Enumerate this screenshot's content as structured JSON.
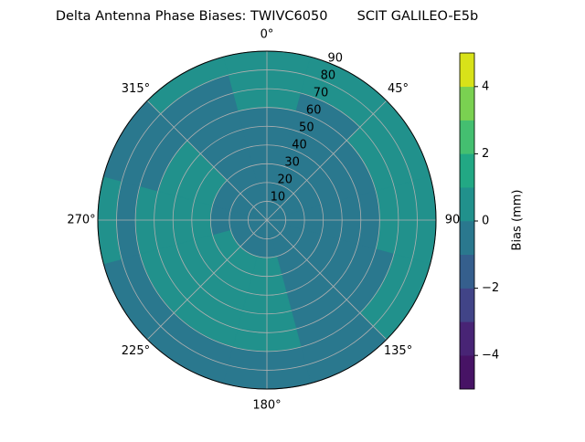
{
  "chart_data": {
    "type": "polar_contour",
    "title": "Delta Antenna Phase Biases: TWIVC6050       SCIT GALILEO-E5b",
    "theta_edges": [
      -15,
      15,
      45,
      75,
      105,
      135,
      165,
      195,
      225,
      255,
      285,
      315,
      345
    ],
    "r_edges": [
      0,
      10,
      20,
      30,
      40,
      50,
      60,
      70,
      80,
      90
    ],
    "values": [
      [
        -0.5,
        -0.5,
        -0.5,
        -0.5,
        -0.5,
        -0.5,
        0.5,
        0.5,
        0.5
      ],
      [
        -0.5,
        -0.5,
        -0.5,
        -0.5,
        -0.5,
        -0.5,
        -0.5,
        0.5,
        0.5
      ],
      [
        -0.5,
        -0.5,
        -0.5,
        -0.5,
        -0.5,
        -0.5,
        0.5,
        0.5,
        0.5
      ],
      [
        -0.5,
        -0.5,
        -0.5,
        -0.5,
        -0.5,
        -0.5,
        0.5,
        0.5,
        0.5
      ],
      [
        -0.5,
        -0.5,
        -0.5,
        -0.5,
        -0.5,
        -0.5,
        -0.5,
        0.5,
        0.5
      ],
      [
        -0.5,
        -0.5,
        -0.5,
        -0.5,
        -0.5,
        -0.5,
        -0.5,
        -0.5,
        -0.5
      ],
      [
        -0.5,
        -0.5,
        0.5,
        0.5,
        0.5,
        0.5,
        0.5,
        -0.5,
        -0.5
      ],
      [
        -0.5,
        -0.5,
        0.5,
        0.5,
        0.5,
        0.5,
        0.5,
        -0.5,
        -0.5
      ],
      [
        -0.5,
        -0.5,
        0.5,
        0.5,
        0.5,
        0.5,
        0.5,
        -0.5,
        -0.5
      ],
      [
        -0.5,
        -0.5,
        -0.5,
        0.5,
        0.5,
        0.5,
        0.5,
        -0.5,
        0.5
      ],
      [
        -0.5,
        -0.5,
        -0.5,
        0.5,
        0.5,
        0.5,
        -0.5,
        -0.5,
        -0.5
      ],
      [
        -0.5,
        -0.5,
        -0.5,
        -0.5,
        -0.5,
        -0.5,
        -0.5,
        -0.5,
        0.5
      ]
    ],
    "rlim": [
      0,
      90
    ],
    "rticks": [
      10,
      20,
      30,
      40,
      50,
      60,
      70,
      80,
      90
    ],
    "thetaticks": [
      {
        "value": 0,
        "label": "0°"
      },
      {
        "value": 45,
        "label": "45°"
      },
      {
        "value": 90,
        "label": "90"
      },
      {
        "value": 135,
        "label": "135°"
      },
      {
        "value": 180,
        "label": "180°"
      },
      {
        "value": 225,
        "label": "225°"
      },
      {
        "value": 270,
        "label": "270°"
      },
      {
        "value": 315,
        "label": "315°"
      }
    ],
    "colorbar": {
      "label": "Bias (mm)",
      "levels": [
        -5,
        -4,
        -3,
        -2,
        -1,
        0,
        1,
        2,
        3,
        4,
        5
      ],
      "colors": [
        "#471365",
        "#482475",
        "#414487",
        "#355f8d",
        "#2a788e",
        "#21918c",
        "#22a884",
        "#44bf70",
        "#7ad151",
        "#d8e219"
      ],
      "ticks": [
        {
          "value": -4,
          "label": "−4"
        },
        {
          "value": -2,
          "label": "−2"
        },
        0,
        2,
        4
      ]
    },
    "grid": true
  }
}
